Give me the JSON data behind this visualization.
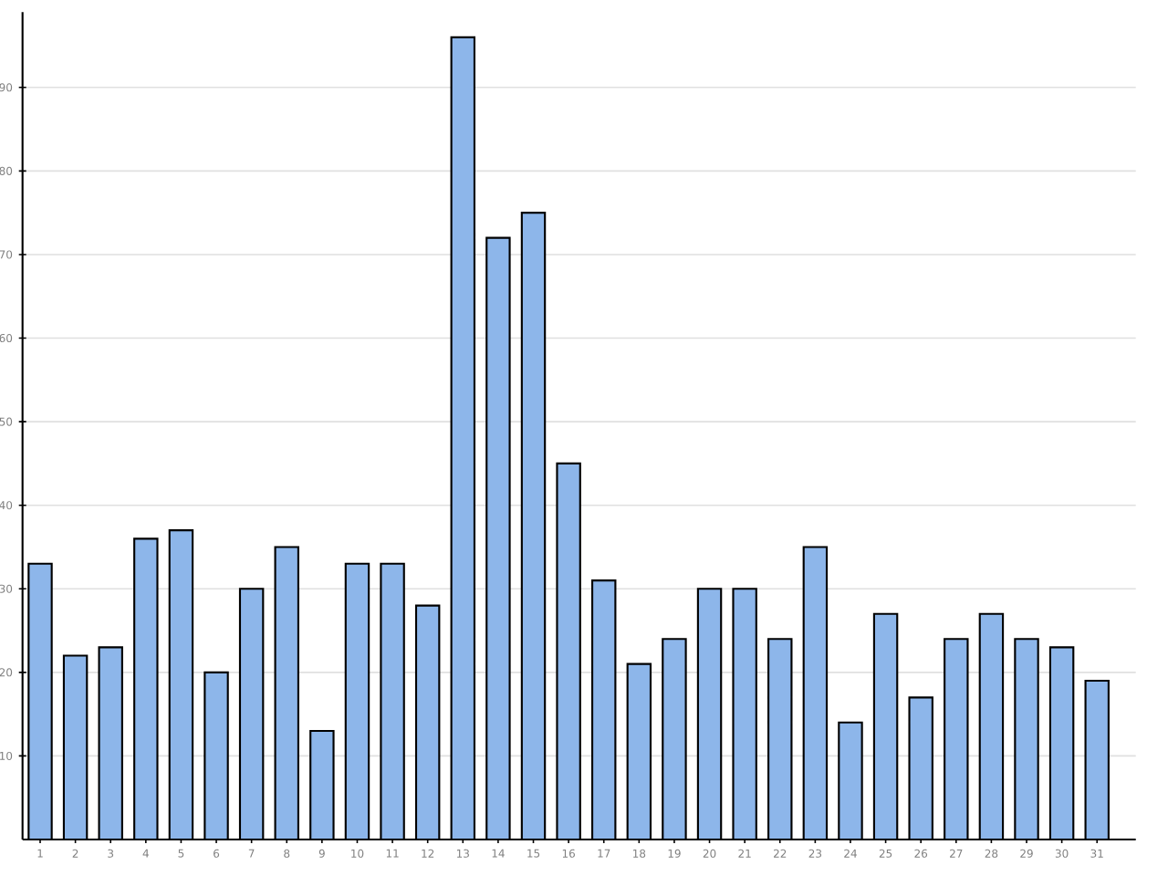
{
  "chart_data": {
    "type": "bar",
    "categories": [
      "1",
      "2",
      "3",
      "4",
      "5",
      "6",
      "7",
      "8",
      "9",
      "10",
      "11",
      "12",
      "13",
      "14",
      "15",
      "16",
      "17",
      "18",
      "19",
      "20",
      "21",
      "22",
      "23",
      "24",
      "25",
      "26",
      "27",
      "28",
      "29",
      "30",
      "31"
    ],
    "values": [
      33,
      22,
      23,
      36,
      37,
      20,
      30,
      35,
      13,
      33,
      33,
      28,
      96,
      72,
      75,
      45,
      31,
      21,
      24,
      30,
      30,
      24,
      35,
      14,
      27,
      17,
      24,
      27,
      24,
      23,
      19
    ],
    "color": "#8db6ea",
    "ylim": [
      0,
      99
    ],
    "yticks": [
      10,
      20,
      30,
      40,
      50,
      60,
      70,
      80,
      90
    ],
    "grid": "y"
  }
}
